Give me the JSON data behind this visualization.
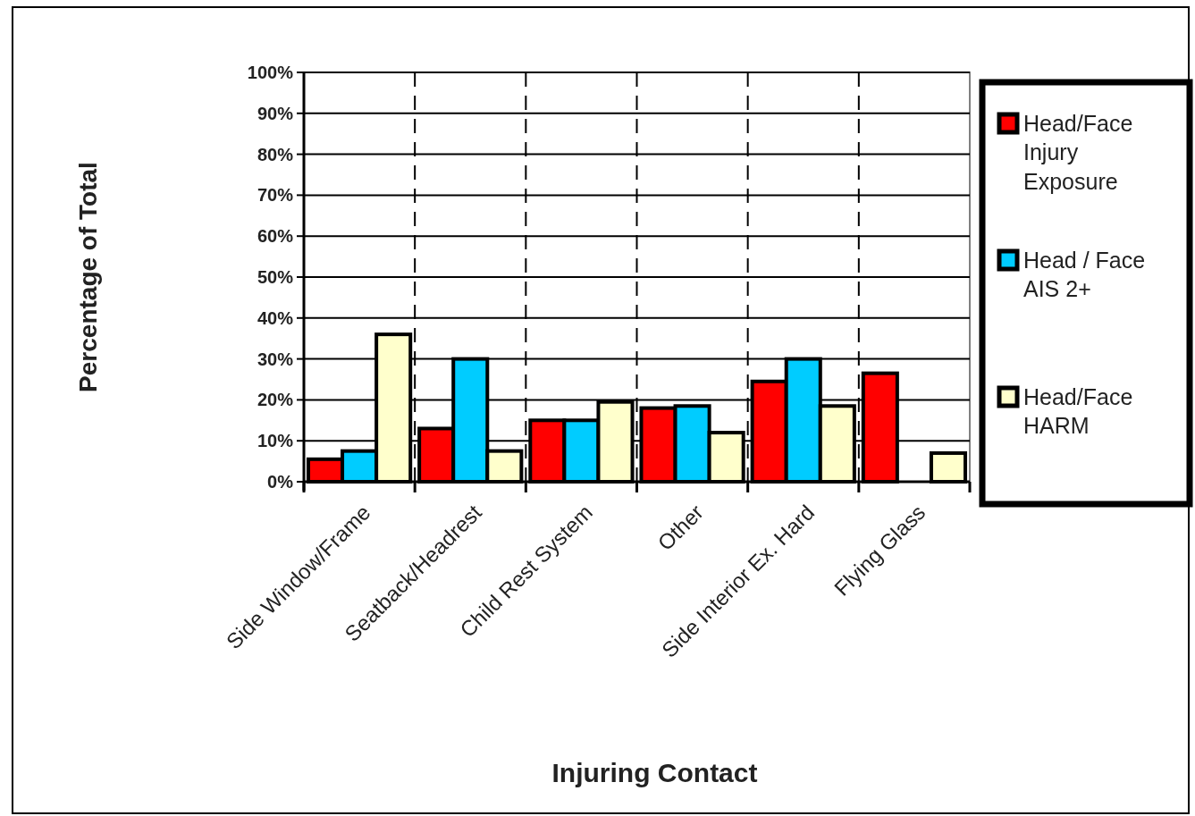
{
  "chart_data": {
    "type": "bar",
    "xlabel": "Injuring Contact",
    "ylabel": "Percentage of Total",
    "categories": [
      "Side Window/Frame",
      "Seatback/Headrest",
      "Child Rest System",
      "Other",
      "Side Interior Ex. Hard",
      "Flying Glass"
    ],
    "series": [
      {
        "name": "Head/Face Injury Exposure",
        "color": "#ff0000",
        "values": [
          5.5,
          13,
          15,
          18,
          24.5,
          26.5
        ]
      },
      {
        "name": "Head / Face AIS 2+",
        "color": "#00ccff",
        "values": [
          7.5,
          30,
          15,
          18.5,
          30,
          null
        ]
      },
      {
        "name": "Head/Face HARM",
        "color": "#ffffcc",
        "values": [
          36,
          7.5,
          19.5,
          12,
          18.5,
          7
        ]
      }
    ],
    "ylim": [
      0,
      100
    ],
    "yticks": [
      {
        "value": 0,
        "label": "0%"
      },
      {
        "value": 10,
        "label": "10%"
      },
      {
        "value": 20,
        "label": "20%"
      },
      {
        "value": 30,
        "label": "30%"
      },
      {
        "value": 40,
        "label": "40%"
      },
      {
        "value": 50,
        "label": "50%"
      },
      {
        "value": 60,
        "label": "60%"
      },
      {
        "value": 70,
        "label": "70%"
      },
      {
        "value": 80,
        "label": "80%"
      },
      {
        "value": 90,
        "label": "90%"
      },
      {
        "value": 100,
        "label": "100%"
      }
    ],
    "grid": true,
    "legend": "right"
  }
}
